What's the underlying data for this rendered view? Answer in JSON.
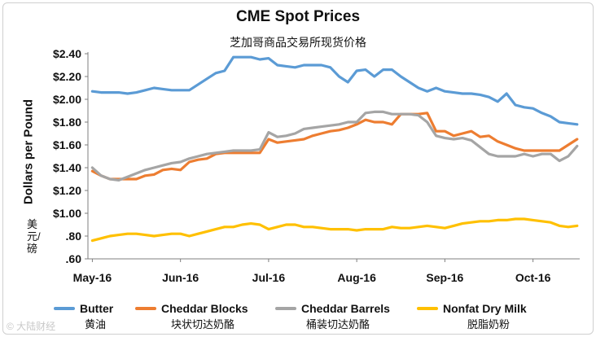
{
  "watermark": "© 大陆财经",
  "chart_data": {
    "type": "line",
    "title": "CME Spot Prices",
    "subtitle": "芝加哥商品交易所现货价格",
    "ylabel": "Dollars per Pound",
    "ylabel_sub": "美元/磅",
    "ylim": [
      0.6,
      2.4
    ],
    "y_ticks": [
      {
        "value": 2.4,
        "label": "$2.40"
      },
      {
        "value": 2.2,
        "label": "$2.20"
      },
      {
        "value": 2.0,
        "label": "$2.00"
      },
      {
        "value": 1.8,
        "label": "$1.80"
      },
      {
        "value": 1.6,
        "label": "$1.60"
      },
      {
        "value": 1.4,
        "label": "$1.40"
      },
      {
        "value": 1.2,
        "label": "$1.20"
      },
      {
        "value": 1.0,
        "label": "$1.00"
      },
      {
        "value": 0.8,
        "label": ".80"
      },
      {
        "value": 0.6,
        "label": ".60"
      }
    ],
    "x_ticks": [
      {
        "value": 0,
        "label": "May-16"
      },
      {
        "value": 1,
        "label": "Jun-16"
      },
      {
        "value": 2,
        "label": "Jul-16"
      },
      {
        "value": 3,
        "label": "Aug-16"
      },
      {
        "value": 4,
        "label": "Sep-16"
      },
      {
        "value": 5,
        "label": "Oct-16"
      }
    ],
    "xlim": [
      -0.05,
      5.53
    ],
    "x": [
      0,
      0.1,
      0.2,
      0.3,
      0.4,
      0.5,
      0.6,
      0.7,
      0.8,
      0.9,
      1.0,
      1.1,
      1.2,
      1.3,
      1.4,
      1.5,
      1.6,
      1.7,
      1.8,
      1.9,
      2.0,
      2.1,
      2.2,
      2.3,
      2.4,
      2.5,
      2.6,
      2.7,
      2.8,
      2.9,
      3.0,
      3.1,
      3.2,
      3.3,
      3.4,
      3.5,
      3.6,
      3.7,
      3.8,
      3.9,
      4.0,
      4.1,
      4.2,
      4.3,
      4.4,
      4.5,
      4.6,
      4.7,
      4.8,
      4.9,
      5.0,
      5.1,
      5.2,
      5.3,
      5.4,
      5.5
    ],
    "series": [
      {
        "name": "Butter",
        "name_cn": "黄油",
        "color": "#5b9bd5",
        "values": [
          2.07,
          2.06,
          2.06,
          2.06,
          2.05,
          2.06,
          2.08,
          2.1,
          2.09,
          2.08,
          2.08,
          2.08,
          2.13,
          2.18,
          2.23,
          2.25,
          2.37,
          2.37,
          2.37,
          2.35,
          2.36,
          2.3,
          2.29,
          2.28,
          2.3,
          2.3,
          2.3,
          2.28,
          2.2,
          2.15,
          2.25,
          2.26,
          2.2,
          2.26,
          2.26,
          2.2,
          2.15,
          2.1,
          2.07,
          2.1,
          2.07,
          2.06,
          2.05,
          2.05,
          2.04,
          2.02,
          1.98,
          2.05,
          1.95,
          1.93,
          1.92,
          1.88,
          1.85,
          1.8,
          1.79,
          1.78
        ]
      },
      {
        "name": "Cheddar Blocks",
        "name_cn": "块状切达奶酪",
        "color": "#ed7d31",
        "values": [
          1.37,
          1.33,
          1.3,
          1.3,
          1.3,
          1.3,
          1.33,
          1.34,
          1.38,
          1.39,
          1.38,
          1.45,
          1.47,
          1.48,
          1.52,
          1.53,
          1.53,
          1.53,
          1.53,
          1.53,
          1.65,
          1.62,
          1.63,
          1.64,
          1.65,
          1.68,
          1.7,
          1.72,
          1.73,
          1.75,
          1.78,
          1.82,
          1.8,
          1.8,
          1.78,
          1.87,
          1.87,
          1.87,
          1.88,
          1.72,
          1.72,
          1.68,
          1.7,
          1.72,
          1.67,
          1.68,
          1.63,
          1.6,
          1.57,
          1.55,
          1.55,
          1.55,
          1.55,
          1.55,
          1.6,
          1.65
        ]
      },
      {
        "name": "Cheddar Barrels",
        "name_cn": "桶装切达奶酪",
        "color": "#a5a5a5",
        "values": [
          1.4,
          1.33,
          1.3,
          1.29,
          1.32,
          1.35,
          1.38,
          1.4,
          1.42,
          1.44,
          1.45,
          1.48,
          1.5,
          1.52,
          1.53,
          1.54,
          1.55,
          1.55,
          1.55,
          1.56,
          1.71,
          1.67,
          1.68,
          1.7,
          1.74,
          1.75,
          1.76,
          1.77,
          1.78,
          1.8,
          1.8,
          1.88,
          1.89,
          1.89,
          1.87,
          1.87,
          1.87,
          1.86,
          1.8,
          1.68,
          1.66,
          1.65,
          1.66,
          1.64,
          1.58,
          1.52,
          1.5,
          1.5,
          1.5,
          1.52,
          1.5,
          1.52,
          1.52,
          1.46,
          1.5,
          1.59
        ]
      },
      {
        "name": "Nonfat Dry Milk",
        "name_cn": "脱脂奶粉",
        "color": "#ffc000",
        "values": [
          0.76,
          0.78,
          0.8,
          0.81,
          0.82,
          0.82,
          0.81,
          0.8,
          0.81,
          0.82,
          0.82,
          0.8,
          0.82,
          0.84,
          0.86,
          0.88,
          0.88,
          0.9,
          0.91,
          0.9,
          0.86,
          0.88,
          0.9,
          0.9,
          0.88,
          0.88,
          0.87,
          0.86,
          0.86,
          0.86,
          0.85,
          0.86,
          0.86,
          0.86,
          0.88,
          0.87,
          0.87,
          0.88,
          0.89,
          0.88,
          0.87,
          0.89,
          0.91,
          0.92,
          0.93,
          0.93,
          0.94,
          0.94,
          0.95,
          0.95,
          0.94,
          0.93,
          0.92,
          0.89,
          0.88,
          0.89
        ]
      }
    ]
  }
}
